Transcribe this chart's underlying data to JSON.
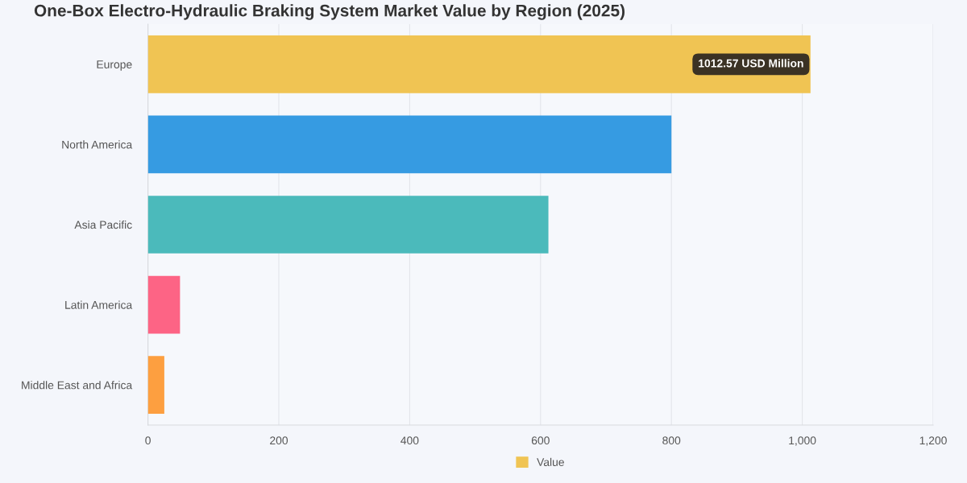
{
  "chart_data": {
    "type": "bar",
    "orientation": "horizontal",
    "title": "One-Box Electro-Hydraulic Braking System Market Value by Region (2025)",
    "categories": [
      "Europe",
      "North America",
      "Asia Pacific",
      "Latin America",
      "Middle East and Africa"
    ],
    "series": [
      {
        "name": "Value",
        "color": "#f0c453",
        "colors": [
          "#f0c453",
          "#369be2",
          "#4bbabb",
          "#fd6485",
          "#fd9f40"
        ],
        "values": [
          1012.57,
          800,
          612,
          49,
          25
        ]
      }
    ],
    "xlim": [
      0,
      1200
    ],
    "xticks": [
      0,
      200,
      400,
      600,
      800,
      {
        "value": 1000,
        "label": "1,000"
      },
      {
        "value": 1200,
        "label": "1,200"
      }
    ],
    "grid": "x",
    "legend": "bottom",
    "annotations": [
      {
        "text": "1012.57 USD Million",
        "x": 1012.57,
        "y": "Europe"
      }
    ]
  }
}
